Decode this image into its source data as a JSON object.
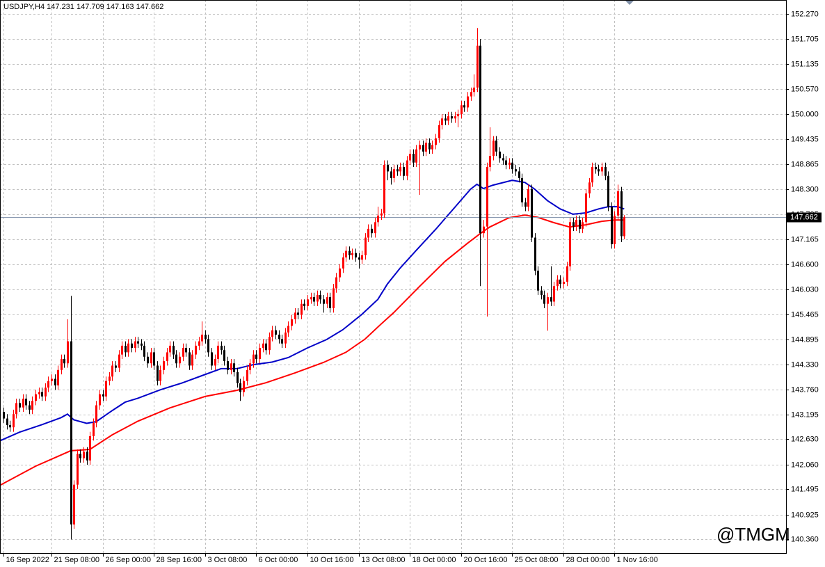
{
  "chart_data": {
    "type": "candlestick",
    "title": "USDJPY,H4 147.231 147.709 147.163 147.662",
    "watermark": "@TMGM",
    "grid": true,
    "up_color": "#ff0000",
    "down_color": "#000000",
    "xlim": [
      -1.1,
      244.6
    ],
    "ylim": [
      140.05,
      152.585
    ],
    "xticks": [
      {
        "value": 0,
        "label": "16 Sep 2022"
      },
      {
        "value": 15,
        "label": "21 Sep 08:00"
      },
      {
        "value": 31,
        "label": "26 Sep 00:00"
      },
      {
        "value": 47,
        "label": "28 Sep 16:00"
      },
      {
        "value": 63,
        "label": "3 Oct 08:00"
      },
      {
        "value": 79,
        "label": "6 Oct 00:00"
      },
      {
        "value": 95,
        "label": "10 Oct 16:00"
      },
      {
        "value": 111,
        "label": "13 Oct 08:00"
      },
      {
        "value": 127,
        "label": "18 Oct 00:00"
      },
      {
        "value": 143,
        "label": "20 Oct 16:00"
      },
      {
        "value": 159,
        "label": "25 Oct 08:00"
      },
      {
        "value": 175,
        "label": "28 Oct 00:00"
      },
      {
        "value": 191,
        "label": "1 Nov 16:00"
      }
    ],
    "yticks": [
      {
        "value": 152.27,
        "label": "152.270"
      },
      {
        "value": 151.705,
        "label": "151.705"
      },
      {
        "value": 151.135,
        "label": "151.135"
      },
      {
        "value": 150.57,
        "label": "150.570"
      },
      {
        "value": 150,
        "label": "150.000"
      },
      {
        "value": 149.435,
        "label": "149.435"
      },
      {
        "value": 148.865,
        "label": "148.865"
      },
      {
        "value": 148.3,
        "label": "148.300"
      },
      {
        "value": 147.735,
        "label": "147.735"
      },
      {
        "value": 147.165,
        "label": "147.165"
      },
      {
        "value": 146.6,
        "label": "146.600"
      },
      {
        "value": 146.03,
        "label": "146.030"
      },
      {
        "value": 145.465,
        "label": "145.465"
      },
      {
        "value": 144.895,
        "label": "144.895"
      },
      {
        "value": 144.33,
        "label": "144.330"
      },
      {
        "value": 143.76,
        "label": "143.760"
      },
      {
        "value": 143.195,
        "label": "143.195"
      },
      {
        "value": 142.63,
        "label": "142.630"
      },
      {
        "value": 142.06,
        "label": "142.060"
      },
      {
        "value": 141.495,
        "label": "141.495"
      },
      {
        "value": 140.925,
        "label": "140.925"
      },
      {
        "value": 140.36,
        "label": "140.360"
      }
    ],
    "current_price": 147.662,
    "open": [
      143.25,
      143.1,
      142.95,
      142.9,
      143.2,
      143.45,
      143.35,
      143.55,
      143.4,
      143.3,
      143.5,
      143.65,
      143.7,
      143.6,
      143.8,
      143.95,
      144.0,
      143.85,
      144.2,
      144.45,
      144.35,
      144.85,
      140.7,
      141.6,
      142.3,
      142.2,
      142.35,
      142.15,
      142.7,
      143.0,
      143.4,
      143.65,
      143.6,
      143.95,
      144.05,
      144.3,
      144.25,
      144.55,
      144.75,
      144.6,
      144.8,
      144.7,
      144.85,
      144.8,
      144.75,
      144.5,
      144.35,
      144.6,
      144.3,
      143.95,
      144.2,
      144.4,
      144.6,
      144.75,
      144.55,
      144.35,
      144.5,
      144.7,
      144.6,
      144.3,
      144.55,
      144.75,
      144.85,
      145.0,
      144.9,
      144.6,
      144.3,
      144.45,
      144.75,
      144.65,
      144.4,
      144.2,
      144.35,
      144.15,
      143.9,
      143.7,
      143.95,
      144.2,
      144.35,
      144.55,
      144.45,
      144.7,
      144.8,
      144.65,
      144.95,
      145.1,
      145.0,
      144.9,
      144.8,
      145.05,
      145.2,
      145.35,
      145.5,
      145.45,
      145.7,
      145.65,
      145.8,
      145.85,
      145.75,
      145.9,
      145.8,
      145.7,
      145.85,
      145.6,
      146.05,
      146.3,
      146.5,
      146.75,
      146.9,
      146.8,
      146.85,
      146.75,
      146.7,
      146.8,
      147.2,
      147.4,
      147.3,
      147.55,
      147.7,
      147.75,
      148.85,
      148.7,
      148.55,
      148.75,
      148.7,
      148.8,
      148.6,
      148.95,
      149.1,
      148.9,
      149.2,
      149.3,
      149.15,
      149.35,
      149.2,
      149.3,
      149.45,
      149.75,
      149.9,
      149.85,
      149.95,
      149.9,
      149.95,
      150.0,
      150.2,
      150.15,
      150.4,
      150.5,
      150.6,
      151.55,
      147.3,
      147.45,
      148.8,
      149.05,
      149.4,
      149.15,
      149.0,
      148.95,
      148.85,
      148.9,
      148.75,
      148.7,
      148.55,
      148.0,
      147.9,
      148.3,
      147.2,
      146.45,
      146.0,
      145.9,
      145.7,
      145.85,
      145.75,
      146.1,
      146.25,
      146.15,
      146.2,
      146.55,
      147.55,
      147.45,
      147.6,
      147.4,
      147.55,
      148.2,
      148.45,
      148.8,
      148.75,
      148.7,
      148.8,
      148.6,
      147.9,
      147.05,
      147.7,
      148.25,
      147.231
    ],
    "high": [
      143.35,
      143.2,
      143.05,
      143.3,
      143.55,
      143.55,
      143.65,
      143.65,
      143.5,
      143.6,
      143.75,
      143.8,
      143.8,
      143.9,
      144.05,
      144.1,
      144.1,
      144.3,
      144.55,
      144.55,
      145.35,
      145.88,
      141.7,
      142.4,
      142.4,
      142.45,
      142.45,
      142.8,
      143.1,
      143.5,
      143.75,
      143.75,
      144.05,
      144.15,
      144.4,
      144.4,
      144.65,
      144.85,
      144.85,
      144.9,
      144.9,
      144.95,
      144.95,
      144.9,
      144.85,
      144.6,
      144.7,
      144.7,
      144.4,
      144.3,
      144.5,
      144.7,
      144.85,
      144.85,
      144.65,
      144.6,
      144.8,
      144.8,
      144.7,
      144.65,
      144.85,
      144.95,
      145.3,
      145.1,
      145.0,
      144.7,
      144.55,
      144.85,
      144.85,
      144.75,
      144.5,
      144.45,
      144.45,
      144.25,
      144.0,
      144.05,
      144.3,
      144.45,
      144.65,
      144.65,
      144.8,
      144.9,
      144.9,
      145.05,
      145.2,
      145.2,
      145.1,
      145.0,
      145.15,
      145.3,
      145.45,
      145.6,
      145.6,
      145.8,
      145.8,
      145.9,
      145.95,
      145.95,
      146.0,
      146.0,
      145.9,
      145.95,
      145.95,
      146.15,
      146.4,
      146.6,
      146.85,
      147.0,
      147.0,
      146.95,
      146.95,
      146.85,
      146.9,
      147.3,
      147.5,
      147.5,
      147.65,
      147.9,
      147.85,
      148.95,
      148.95,
      148.8,
      148.85,
      148.85,
      148.9,
      148.9,
      149.05,
      149.2,
      149.2,
      149.3,
      149.4,
      149.4,
      149.45,
      149.45,
      149.4,
      149.55,
      149.85,
      150.0,
      150.0,
      150.05,
      150.05,
      150.05,
      150.1,
      150.3,
      150.3,
      150.5,
      150.6,
      150.9,
      151.95,
      151.7,
      147.6,
      148.9,
      149.7,
      149.5,
      149.5,
      149.25,
      149.1,
      149.05,
      149.0,
      149.0,
      148.85,
      148.8,
      148.65,
      148.1,
      148.4,
      148.4,
      147.3,
      146.55,
      146.1,
      146.0,
      145.95,
      146.55,
      146.2,
      146.35,
      146.35,
      146.3,
      146.65,
      147.65,
      147.65,
      147.7,
      147.7,
      147.65,
      148.3,
      148.55,
      148.9,
      148.9,
      148.85,
      148.9,
      148.9,
      148.7,
      148.0,
      147.8,
      148.4,
      148.35,
      147.709
    ],
    "low": [
      143.0,
      142.85,
      142.8,
      142.8,
      143.1,
      143.25,
      143.25,
      143.3,
      143.2,
      143.2,
      143.4,
      143.55,
      143.5,
      143.5,
      143.7,
      143.85,
      143.75,
      143.75,
      144.1,
      144.25,
      144.25,
      140.36,
      140.6,
      141.5,
      142.1,
      142.1,
      142.05,
      142.05,
      142.6,
      142.9,
      143.3,
      143.5,
      143.5,
      143.85,
      143.95,
      144.15,
      144.15,
      144.45,
      144.5,
      144.5,
      144.6,
      144.6,
      144.7,
      144.65,
      144.4,
      144.25,
      144.25,
      144.2,
      143.85,
      143.85,
      144.1,
      144.3,
      144.5,
      144.45,
      144.25,
      144.25,
      144.4,
      144.5,
      144.2,
      144.2,
      144.45,
      144.65,
      144.75,
      144.8,
      144.5,
      144.2,
      144.2,
      144.35,
      144.55,
      144.3,
      144.1,
      144.1,
      144.05,
      143.8,
      143.5,
      143.6,
      143.85,
      144.1,
      144.25,
      144.35,
      144.35,
      144.6,
      144.55,
      144.55,
      144.85,
      144.9,
      144.8,
      144.7,
      144.7,
      144.95,
      145.1,
      145.25,
      145.35,
      145.35,
      145.55,
      145.55,
      145.7,
      145.65,
      145.65,
      145.7,
      145.5,
      145.6,
      145.5,
      145.5,
      145.95,
      146.2,
      146.4,
      146.65,
      146.7,
      146.7,
      146.65,
      146.5,
      146.6,
      146.7,
      147.1,
      147.2,
      147.2,
      147.45,
      147.6,
      147.65,
      148.5,
      148.4,
      148.45,
      148.6,
      148.6,
      148.5,
      148.5,
      148.85,
      148.8,
      148.8,
      148.17,
      149.05,
      149.05,
      149.1,
      149.1,
      149.2,
      149.35,
      149.65,
      149.75,
      149.75,
      149.8,
      149.8,
      149.7,
      149.9,
      150.05,
      150.05,
      150.3,
      150.4,
      150.5,
      146.1,
      147.2,
      145.41,
      148.7,
      148.95,
      149.05,
      148.9,
      148.85,
      148.75,
      148.75,
      148.65,
      148.6,
      148.45,
      147.9,
      147.8,
      147.8,
      147.1,
      146.35,
      145.9,
      145.8,
      145.6,
      145.09,
      145.65,
      145.65,
      146.0,
      146.05,
      146.05,
      146.1,
      146.45,
      147.35,
      147.35,
      147.3,
      147.3,
      147.45,
      148.1,
      148.35,
      148.65,
      148.6,
      148.6,
      148.5,
      147.8,
      146.95,
      146.95,
      147.6,
      147.1,
      147.163
    ],
    "close": [
      143.1,
      142.95,
      142.9,
      143.2,
      143.45,
      143.35,
      143.55,
      143.4,
      143.3,
      143.5,
      143.65,
      143.7,
      143.6,
      143.8,
      143.95,
      144.0,
      143.85,
      144.2,
      144.45,
      144.35,
      144.85,
      140.7,
      141.6,
      142.3,
      142.2,
      142.35,
      142.15,
      142.7,
      143.0,
      143.4,
      143.65,
      143.6,
      143.95,
      144.05,
      144.3,
      144.25,
      144.55,
      144.75,
      144.6,
      144.8,
      144.7,
      144.85,
      144.8,
      144.75,
      144.5,
      144.35,
      144.6,
      144.3,
      143.95,
      144.2,
      144.4,
      144.6,
      144.75,
      144.55,
      144.35,
      144.5,
      144.7,
      144.6,
      144.3,
      144.55,
      144.75,
      144.85,
      145.0,
      144.9,
      144.6,
      144.3,
      144.45,
      144.75,
      144.65,
      144.4,
      144.2,
      144.35,
      144.15,
      143.9,
      143.7,
      143.95,
      144.2,
      144.35,
      144.55,
      144.45,
      144.7,
      144.8,
      144.65,
      144.95,
      145.1,
      145.0,
      144.9,
      144.8,
      145.05,
      145.2,
      145.35,
      145.5,
      145.45,
      145.7,
      145.65,
      145.8,
      145.85,
      145.75,
      145.9,
      145.8,
      145.7,
      145.85,
      145.6,
      146.05,
      146.3,
      146.5,
      146.75,
      146.9,
      146.8,
      146.85,
      146.75,
      146.7,
      146.8,
      147.2,
      147.4,
      147.3,
      147.55,
      147.7,
      147.75,
      148.85,
      148.7,
      148.55,
      148.75,
      148.7,
      148.8,
      148.6,
      148.95,
      149.1,
      148.9,
      149.2,
      149.3,
      149.15,
      149.35,
      149.2,
      149.3,
      149.45,
      149.75,
      149.9,
      149.85,
      149.95,
      149.9,
      149.95,
      150.0,
      150.2,
      150.15,
      150.4,
      150.5,
      150.6,
      151.55,
      147.3,
      147.45,
      148.8,
      149.05,
      149.4,
      149.15,
      149.0,
      148.95,
      148.85,
      148.9,
      148.75,
      148.7,
      148.55,
      148.0,
      147.9,
      148.3,
      147.2,
      146.45,
      146.0,
      145.9,
      145.7,
      145.85,
      145.75,
      146.1,
      146.25,
      146.15,
      146.2,
      146.55,
      147.55,
      147.45,
      147.6,
      147.4,
      147.55,
      148.2,
      148.45,
      148.8,
      148.75,
      148.7,
      148.8,
      148.6,
      147.9,
      147.05,
      147.7,
      148.25,
      147.231,
      147.662
    ],
    "lines": [
      {
        "color": "#0000c8",
        "x": [
          -1,
          5,
          12,
          18,
          20,
          22,
          26,
          29,
          34,
          38,
          42,
          49,
          56,
          62,
          68,
          73,
          78,
          84,
          89,
          95,
          101,
          106,
          112,
          117,
          120,
          124,
          129,
          135,
          141,
          146,
          148,
          150,
          153,
          159,
          163,
          166,
          170,
          174,
          178,
          182,
          186,
          189,
          192,
          194
        ],
        "values": [
          142.6,
          142.79,
          142.96,
          143.12,
          143.2,
          143.07,
          142.99,
          143.03,
          143.28,
          143.47,
          143.56,
          143.75,
          143.91,
          144.07,
          144.23,
          144.23,
          144.32,
          144.38,
          144.48,
          144.7,
          144.89,
          145.11,
          145.46,
          145.8,
          146.15,
          146.51,
          146.91,
          147.38,
          147.88,
          148.3,
          148.41,
          148.31,
          148.39,
          148.5,
          148.45,
          148.3,
          148.04,
          147.85,
          147.73,
          147.76,
          147.85,
          147.9,
          147.9,
          147.85
        ]
      },
      {
        "color": "#ff0000",
        "x": [
          -1,
          10,
          21,
          27,
          34,
          42,
          52,
          63,
          73,
          82,
          91,
          100,
          107,
          113,
          118,
          122,
          130,
          138,
          145,
          149,
          152,
          158,
          163,
          167,
          172,
          177,
          182,
          187,
          191,
          194
        ],
        "values": [
          141.59,
          142.02,
          142.37,
          142.4,
          142.73,
          143.04,
          143.34,
          143.6,
          143.74,
          143.91,
          144.13,
          144.37,
          144.6,
          144.9,
          145.24,
          145.5,
          146.09,
          146.66,
          147.07,
          147.29,
          147.44,
          147.65,
          147.71,
          147.66,
          147.54,
          147.44,
          147.49,
          147.57,
          147.6,
          147.6
        ]
      }
    ]
  }
}
